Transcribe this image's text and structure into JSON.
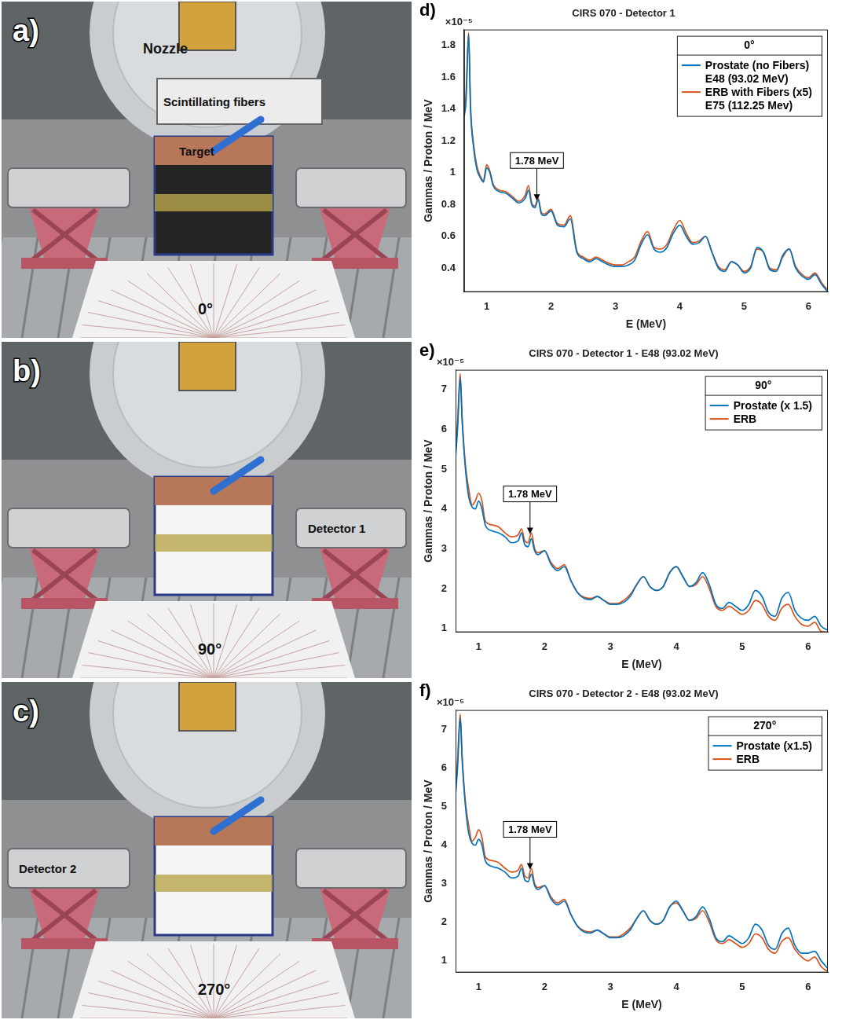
{
  "photos": [
    {
      "letter": "a)",
      "angle": "0°",
      "labels": {
        "nozzle": "Nozzle",
        "fibers": "Scintillating fibers",
        "target": "Target"
      }
    },
    {
      "letter": "b)",
      "angle": "90°",
      "labels": {
        "detector_right": "Detector 1"
      }
    },
    {
      "letter": "c)",
      "angle": "270°",
      "labels": {
        "detector_left": "Detector 2"
      }
    }
  ],
  "chart_data": [
    {
      "type": "line",
      "panel_letter": "d)",
      "title": "CIRS 070 - Detector 1",
      "y_multiplier": "×10⁻⁵",
      "x_label": "E (MeV)",
      "y_label": "Gammas / Proton / MeV",
      "x": [
        0.65,
        0.68,
        0.72,
        0.75,
        0.8,
        0.85,
        0.9,
        0.95,
        1.0,
        1.05,
        1.1,
        1.2,
        1.3,
        1.4,
        1.5,
        1.6,
        1.65,
        1.7,
        1.75,
        1.8,
        1.85,
        1.9,
        2.0,
        2.1,
        2.2,
        2.3,
        2.4,
        2.5,
        2.6,
        2.7,
        2.8,
        2.9,
        3.0,
        3.1,
        3.2,
        3.3,
        3.4,
        3.5,
        3.6,
        3.7,
        3.8,
        3.9,
        4.0,
        4.1,
        4.2,
        4.3,
        4.4,
        4.5,
        4.6,
        4.7,
        4.8,
        4.9,
        5.0,
        5.1,
        5.2,
        5.3,
        5.4,
        5.5,
        5.6,
        5.7,
        5.8,
        5.9,
        6.0,
        6.1,
        6.2,
        6.3
      ],
      "xlim": [
        0.65,
        6.3
      ],
      "xticks": [
        1,
        2,
        3,
        4,
        5,
        6
      ],
      "ylim": [
        0.25,
        1.9
      ],
      "yticks": [
        0.4,
        0.6,
        0.8,
        1,
        1.2,
        1.4,
        1.6,
        1.8
      ],
      "grid": false,
      "legend": "upper-right",
      "legend_title": "0°",
      "annotations": [
        {
          "text": "1.78 MeV",
          "x": 1.78,
          "y": 0.82
        }
      ],
      "series": [
        {
          "name": "Prostate (no Fibers)\nE48 (93.02 MeV)",
          "color": "#0072BD",
          "line_style": "solid",
          "values": [
            1.35,
            1.45,
            1.87,
            1.4,
            1.15,
            1.02,
            0.97,
            0.94,
            1.03,
            1.0,
            0.92,
            0.88,
            0.87,
            0.84,
            0.81,
            0.84,
            0.89,
            0.8,
            0.78,
            0.83,
            0.74,
            0.73,
            0.76,
            0.67,
            0.66,
            0.71,
            0.5,
            0.46,
            0.44,
            0.46,
            0.44,
            0.42,
            0.41,
            0.41,
            0.42,
            0.45,
            0.55,
            0.61,
            0.52,
            0.5,
            0.53,
            0.62,
            0.67,
            0.6,
            0.55,
            0.56,
            0.6,
            0.5,
            0.4,
            0.38,
            0.44,
            0.42,
            0.37,
            0.4,
            0.53,
            0.5,
            0.39,
            0.38,
            0.48,
            0.52,
            0.4,
            0.35,
            0.33,
            0.36,
            0.3,
            0.25
          ]
        },
        {
          "name": "ERB with Fibers (x5)\nE75 (112.25 Mev)",
          "color": "#D95319",
          "line_style": "solid",
          "values": [
            1.38,
            1.5,
            1.88,
            1.42,
            1.17,
            1.04,
            0.98,
            0.95,
            1.05,
            1.01,
            0.93,
            0.89,
            0.88,
            0.85,
            0.82,
            0.86,
            0.92,
            0.81,
            0.79,
            0.84,
            0.75,
            0.74,
            0.77,
            0.68,
            0.67,
            0.73,
            0.51,
            0.47,
            0.45,
            0.47,
            0.45,
            0.43,
            0.42,
            0.42,
            0.44,
            0.47,
            0.57,
            0.63,
            0.53,
            0.52,
            0.55,
            0.64,
            0.7,
            0.62,
            0.56,
            0.57,
            0.6,
            0.5,
            0.41,
            0.39,
            0.44,
            0.42,
            0.38,
            0.41,
            0.52,
            0.5,
            0.4,
            0.39,
            0.47,
            0.52,
            0.41,
            0.36,
            0.34,
            0.37,
            0.31,
            0.26
          ]
        }
      ]
    },
    {
      "type": "line",
      "panel_letter": "e)",
      "title": "CIRS 070 - Detector 1 - E48 (93.02 MeV)",
      "y_multiplier": "×10⁻⁵",
      "x_label": "E (MeV)",
      "y_label": "Gammas / Proton / MeV",
      "x": [
        0.65,
        0.68,
        0.72,
        0.75,
        0.8,
        0.85,
        0.9,
        0.95,
        1.0,
        1.05,
        1.1,
        1.2,
        1.3,
        1.4,
        1.5,
        1.6,
        1.65,
        1.7,
        1.75,
        1.8,
        1.85,
        1.9,
        2.0,
        2.1,
        2.2,
        2.3,
        2.4,
        2.5,
        2.6,
        2.7,
        2.8,
        2.9,
        3.0,
        3.1,
        3.2,
        3.3,
        3.4,
        3.5,
        3.6,
        3.7,
        3.8,
        3.9,
        4.0,
        4.1,
        4.2,
        4.3,
        4.4,
        4.5,
        4.6,
        4.7,
        4.8,
        4.9,
        5.0,
        5.1,
        5.2,
        5.3,
        5.4,
        5.5,
        5.6,
        5.7,
        5.8,
        5.9,
        6.0,
        6.1,
        6.2,
        6.3
      ],
      "xlim": [
        0.65,
        6.3
      ],
      "xticks": [
        1,
        2,
        3,
        4,
        5,
        6
      ],
      "ylim": [
        0.9,
        7.5
      ],
      "yticks": [
        1,
        2,
        3,
        4,
        5,
        6,
        7
      ],
      "grid": false,
      "legend": "upper-right",
      "legend_title": "90°",
      "annotations": [
        {
          "text": "1.78 MeV",
          "x": 1.78,
          "y": 3.35
        }
      ],
      "series": [
        {
          "name": "Prostate (x 1.5)",
          "color": "#0072BD",
          "line_style": "solid",
          "values": [
            5.3,
            6.0,
            7.3,
            6.2,
            5.0,
            4.3,
            4.05,
            4.0,
            4.2,
            4.0,
            3.6,
            3.45,
            3.4,
            3.3,
            3.15,
            3.2,
            3.4,
            3.1,
            3.05,
            3.25,
            2.95,
            2.85,
            2.95,
            2.6,
            2.45,
            2.55,
            2.2,
            1.9,
            1.75,
            1.72,
            1.8,
            1.7,
            1.6,
            1.6,
            1.65,
            1.8,
            2.1,
            2.3,
            2.05,
            1.95,
            2.05,
            2.4,
            2.55,
            2.3,
            2.05,
            2.15,
            2.4,
            2.1,
            1.6,
            1.5,
            1.65,
            1.55,
            1.45,
            1.6,
            1.95,
            1.8,
            1.4,
            1.3,
            1.75,
            1.9,
            1.45,
            1.25,
            1.2,
            1.3,
            1.05,
            0.95
          ]
        },
        {
          "name": "ERB",
          "color": "#D95319",
          "line_style": "solid",
          "values": [
            5.5,
            6.2,
            7.4,
            6.3,
            5.1,
            4.5,
            4.1,
            4.2,
            4.4,
            4.2,
            3.7,
            3.6,
            3.55,
            3.4,
            3.3,
            3.35,
            3.5,
            3.2,
            3.15,
            3.4,
            3.0,
            2.9,
            2.95,
            2.65,
            2.5,
            2.6,
            2.2,
            1.9,
            1.78,
            1.75,
            1.8,
            1.7,
            1.62,
            1.62,
            1.7,
            1.85,
            2.1,
            2.3,
            2.05,
            1.95,
            2.05,
            2.4,
            2.55,
            2.3,
            2.05,
            2.1,
            2.3,
            2.0,
            1.55,
            1.45,
            1.55,
            1.45,
            1.35,
            1.45,
            1.7,
            1.6,
            1.3,
            1.2,
            1.5,
            1.6,
            1.3,
            1.1,
            1.05,
            1.15,
            0.92,
            0.9
          ]
        }
      ]
    },
    {
      "type": "line",
      "panel_letter": "f)",
      "title": "CIRS 070 - Detector 2 - E48 (93.02 MeV)",
      "y_multiplier": "×10⁻⁵",
      "x_label": "E (MeV)",
      "y_label": "Gammas / Proton / MeV",
      "x": [
        0.65,
        0.68,
        0.72,
        0.75,
        0.8,
        0.85,
        0.9,
        0.95,
        1.0,
        1.05,
        1.1,
        1.2,
        1.3,
        1.4,
        1.5,
        1.6,
        1.65,
        1.7,
        1.75,
        1.8,
        1.85,
        1.9,
        2.0,
        2.1,
        2.2,
        2.3,
        2.4,
        2.5,
        2.6,
        2.7,
        2.8,
        2.9,
        3.0,
        3.1,
        3.2,
        3.3,
        3.4,
        3.5,
        3.6,
        3.7,
        3.8,
        3.9,
        4.0,
        4.1,
        4.2,
        4.3,
        4.4,
        4.5,
        4.6,
        4.7,
        4.8,
        4.9,
        5.0,
        5.1,
        5.2,
        5.3,
        5.4,
        5.5,
        5.6,
        5.7,
        5.8,
        5.9,
        6.0,
        6.1,
        6.2,
        6.3
      ],
      "xlim": [
        0.65,
        6.3
      ],
      "xticks": [
        1,
        2,
        3,
        4,
        5,
        6
      ],
      "ylim": [
        0.7,
        7.5
      ],
      "yticks": [
        1,
        2,
        3,
        4,
        5,
        6,
        7
      ],
      "grid": false,
      "legend": "upper-right",
      "legend_title": "270°",
      "annotations": [
        {
          "text": "1.78 MeV",
          "x": 1.78,
          "y": 3.35
        }
      ],
      "series": [
        {
          "name": "Prostate (x1.5)",
          "color": "#0072BD",
          "line_style": "solid",
          "values": [
            5.3,
            6.0,
            7.3,
            6.2,
            5.0,
            4.3,
            4.05,
            4.0,
            4.15,
            4.0,
            3.6,
            3.45,
            3.4,
            3.3,
            3.15,
            3.2,
            3.4,
            3.1,
            3.05,
            3.25,
            2.95,
            2.85,
            2.95,
            2.6,
            2.45,
            2.55,
            2.2,
            1.9,
            1.75,
            1.72,
            1.8,
            1.7,
            1.6,
            1.6,
            1.65,
            1.8,
            2.1,
            2.3,
            2.05,
            1.95,
            2.05,
            2.4,
            2.55,
            2.3,
            2.05,
            2.15,
            2.4,
            2.1,
            1.6,
            1.5,
            1.65,
            1.55,
            1.45,
            1.6,
            1.95,
            1.8,
            1.4,
            1.3,
            1.7,
            1.85,
            1.4,
            1.2,
            1.2,
            1.25,
            1.0,
            0.8
          ]
        },
        {
          "name": "ERB",
          "color": "#D95319",
          "line_style": "solid",
          "values": [
            5.5,
            6.2,
            7.4,
            6.3,
            5.1,
            4.5,
            4.1,
            4.2,
            4.4,
            4.2,
            3.7,
            3.6,
            3.55,
            3.4,
            3.3,
            3.35,
            3.5,
            3.2,
            3.15,
            3.4,
            3.0,
            2.9,
            2.95,
            2.65,
            2.5,
            2.6,
            2.2,
            1.9,
            1.78,
            1.75,
            1.8,
            1.7,
            1.62,
            1.62,
            1.7,
            1.85,
            2.1,
            2.3,
            2.05,
            1.95,
            2.05,
            2.4,
            2.5,
            2.3,
            2.05,
            2.1,
            2.3,
            2.0,
            1.55,
            1.45,
            1.55,
            1.45,
            1.35,
            1.45,
            1.7,
            1.6,
            1.3,
            1.2,
            1.5,
            1.6,
            1.3,
            1.1,
            1.0,
            1.1,
            0.85,
            0.72
          ]
        }
      ]
    }
  ]
}
